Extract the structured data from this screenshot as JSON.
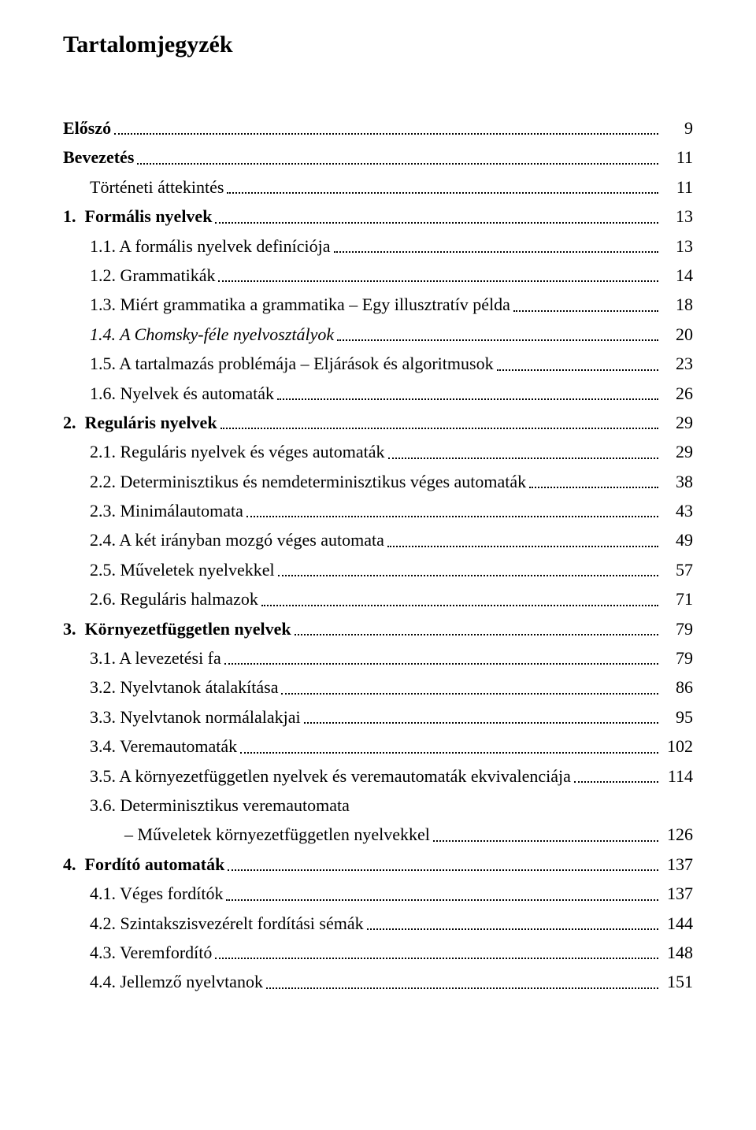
{
  "title": "Tartalomjegyzék",
  "fonts": {
    "body_family": "Times New Roman",
    "body_size_pt": 16,
    "title_size_pt": 22
  },
  "colors": {
    "text": "#000000",
    "background": "#ffffff",
    "leader": "#000000"
  },
  "entries": [
    {
      "label": "Előszó",
      "page": "9",
      "bold": true,
      "italic": false,
      "indent": 0,
      "has_leader": true
    },
    {
      "label": "Bevezetés",
      "page": "11",
      "bold": true,
      "italic": false,
      "indent": 0,
      "has_leader": true
    },
    {
      "label": "Történeti áttekintés",
      "page": "11",
      "bold": false,
      "italic": false,
      "indent": 1,
      "has_leader": true
    },
    {
      "label": "1. Formális nyelvek",
      "page": "13",
      "bold": true,
      "italic": false,
      "indent": 0,
      "has_leader": true
    },
    {
      "label": "1.1. A formális nyelvek definíciója",
      "page": "13",
      "bold": false,
      "italic": false,
      "indent": 1,
      "has_leader": true
    },
    {
      "label": "1.2. Grammatikák",
      "page": "14",
      "bold": false,
      "italic": false,
      "indent": 1,
      "has_leader": true
    },
    {
      "label": "1.3. Miért grammatika a grammatika – Egy illusztratív példa",
      "page": "18",
      "bold": false,
      "italic": false,
      "indent": 1,
      "has_leader": true
    },
    {
      "label": "1.4. A Chomsky-féle nyelvosztályok",
      "page": "20",
      "bold": false,
      "italic": true,
      "indent": 1,
      "has_leader": true
    },
    {
      "label": "1.5. A tartalmazás problémája – Eljárások és algoritmusok",
      "page": "23",
      "bold": false,
      "italic": false,
      "indent": 1,
      "has_leader": true
    },
    {
      "label": "1.6. Nyelvek és automaták",
      "page": "26",
      "bold": false,
      "italic": false,
      "indent": 1,
      "has_leader": true
    },
    {
      "label": "2. Reguláris nyelvek",
      "page": "29",
      "bold": true,
      "italic": false,
      "indent": 0,
      "has_leader": true
    },
    {
      "label": "2.1. Reguláris nyelvek és véges automaták",
      "page": "29",
      "bold": false,
      "italic": false,
      "indent": 1,
      "has_leader": true
    },
    {
      "label": "2.2. Determinisztikus és nemdeterminisztikus véges automaták",
      "page": "38",
      "bold": false,
      "italic": false,
      "indent": 1,
      "has_leader": true
    },
    {
      "label": "2.3. Minimálautomata",
      "page": "43",
      "bold": false,
      "italic": false,
      "indent": 1,
      "has_leader": true
    },
    {
      "label": "2.4. A két irányban mozgó véges automata",
      "page": "49",
      "bold": false,
      "italic": false,
      "indent": 1,
      "has_leader": true
    },
    {
      "label": "2.5. Műveletek nyelvekkel",
      "page": "57",
      "bold": false,
      "italic": false,
      "indent": 1,
      "has_leader": true
    },
    {
      "label": "2.6. Reguláris halmazok",
      "page": "71",
      "bold": false,
      "italic": false,
      "indent": 1,
      "has_leader": true
    },
    {
      "label": "3. Környezetfüggetlen nyelvek",
      "page": "79",
      "bold": true,
      "italic": false,
      "indent": 0,
      "has_leader": true
    },
    {
      "label": "3.1. A levezetési fa",
      "page": "79",
      "bold": false,
      "italic": false,
      "indent": 1,
      "has_leader": true
    },
    {
      "label": "3.2. Nyelvtanok átalakítása",
      "page": "86",
      "bold": false,
      "italic": false,
      "indent": 1,
      "has_leader": true
    },
    {
      "label": "3.3. Nyelvtanok normálalakjai",
      "page": "95",
      "bold": false,
      "italic": false,
      "indent": 1,
      "has_leader": true
    },
    {
      "label": "3.4. Veremautomaták",
      "page": "102",
      "bold": false,
      "italic": false,
      "indent": 1,
      "has_leader": true
    },
    {
      "label": "3.5. A környezetfüggetlen nyelvek és veremautomaták ekvivalenciája",
      "page": "114",
      "bold": false,
      "italic": false,
      "indent": 1,
      "has_leader": true
    },
    {
      "label": "3.6. Determinisztikus veremautomata",
      "page": "",
      "bold": false,
      "italic": false,
      "indent": 1,
      "has_leader": false
    },
    {
      "label": "– Műveletek környezetfüggetlen nyelvekkel",
      "page": "126",
      "bold": false,
      "italic": false,
      "indent": 2,
      "has_leader": true
    },
    {
      "label": "4. Fordító automaták",
      "page": "137",
      "bold": true,
      "italic": false,
      "indent": 0,
      "has_leader": true
    },
    {
      "label": "4.1. Véges fordítók",
      "page": "137",
      "bold": false,
      "italic": false,
      "indent": 1,
      "has_leader": true
    },
    {
      "label": "4.2. Szintakszisvezérelt fordítási sémák",
      "page": "144",
      "bold": false,
      "italic": false,
      "indent": 1,
      "has_leader": true
    },
    {
      "label": "4.3. Veremfordító",
      "page": "148",
      "bold": false,
      "italic": false,
      "indent": 1,
      "has_leader": true
    },
    {
      "label": "4.4. Jellemző nyelvtanok",
      "page": "151",
      "bold": false,
      "italic": false,
      "indent": 1,
      "has_leader": true
    }
  ]
}
